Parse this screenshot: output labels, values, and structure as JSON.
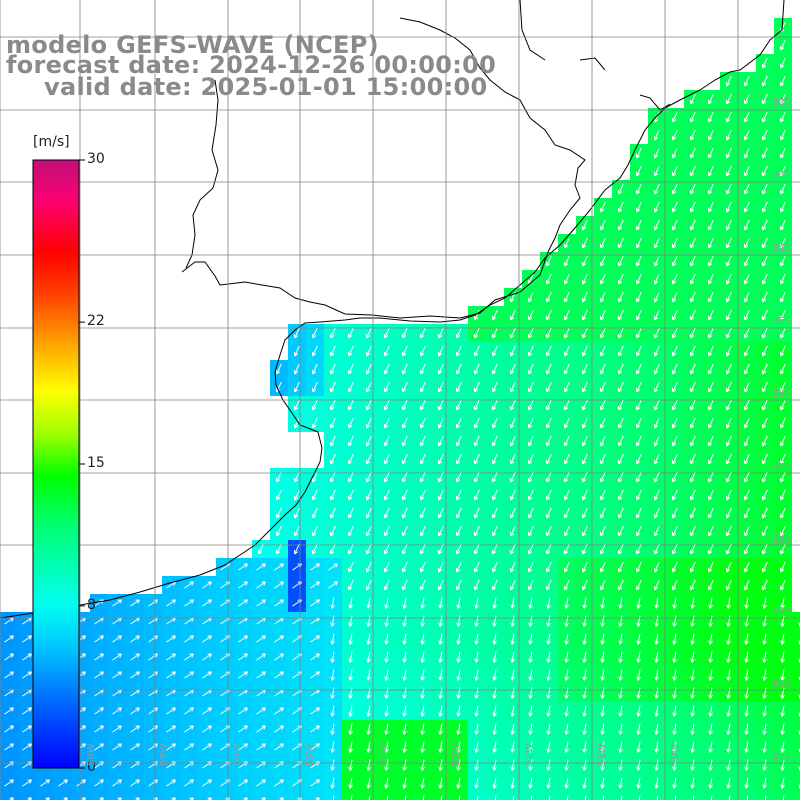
{
  "title": {
    "line1": "modelo GEFS-WAVE (NCEP)",
    "line2": "forecast date: 2024-12-26 00:00:00",
    "line3": "valid date: 2025-01-01 15:00:00"
  },
  "colorbar": {
    "unit": "[m/s]",
    "ticks": [
      {
        "value": 30,
        "label": "30"
      },
      {
        "value": 22,
        "label": "22"
      },
      {
        "value": 15,
        "label": "15"
      },
      {
        "value": 8,
        "label": "8"
      },
      {
        "value": 0,
        "label": "0"
      }
    ],
    "min": 0,
    "max": 30,
    "colors": [
      "#0000ff",
      "#0050ff",
      "#00a8ff",
      "#00e6ff",
      "#00ffd0",
      "#00ff60",
      "#00ff00",
      "#80ff00",
      "#ffff00",
      "#ffa000",
      "#ff4000",
      "#ff0000",
      "#e0006a",
      "#c0007a"
    ]
  },
  "map": {
    "latitude_labels": [
      "32S",
      "33S",
      "34S",
      "35S",
      "36S",
      "37S",
      "38S",
      "39S",
      "40S",
      "41S"
    ],
    "longitude_labels": [
      "58W",
      "57W",
      "56W",
      "55W",
      "54W",
      "53W",
      "52W",
      "51W",
      "50W"
    ],
    "land_color": "#ffffff",
    "coast_color": "#000000",
    "grid_color": "#808080",
    "field": "wind speed",
    "typical_wind_direction": "from north-east"
  }
}
